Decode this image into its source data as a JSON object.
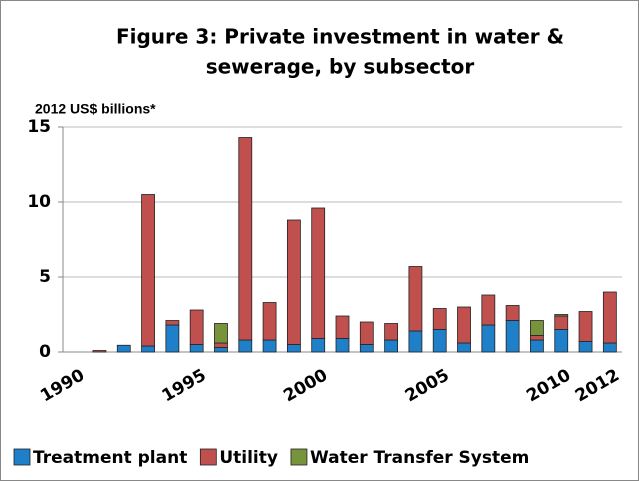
{
  "chart_data": {
    "type": "stacked_bar",
    "title": [
      "Figure 3: Private investment in water &",
      "sewerage, by subsector"
    ],
    "y_label": "2012 US$  billions*",
    "categories": [
      "1990",
      null,
      null,
      null,
      null,
      "1995",
      null,
      null,
      null,
      null,
      "2000",
      null,
      null,
      null,
      null,
      "2005",
      null,
      null,
      null,
      null,
      "2010",
      null,
      "2012"
    ],
    "series": [
      {
        "name": "Treatment plant",
        "color": "#1f7fc8",
        "values": [
          0,
          0,
          0.45,
          0.4,
          1.8,
          0.5,
          0.3,
          0.8,
          0.8,
          0.5,
          0.9,
          0.9,
          0.5,
          0.8,
          1.4,
          1.5,
          0.6,
          1.8,
          2.1,
          0.8,
          1.5,
          0.7,
          0.6
        ]
      },
      {
        "name": "Utility",
        "color": "#c0504d",
        "values": [
          0,
          0.1,
          0,
          10.1,
          0.3,
          2.3,
          0.3,
          13.5,
          2.5,
          8.3,
          8.7,
          1.5,
          1.5,
          1.1,
          4.3,
          1.4,
          2.4,
          2.0,
          1.0,
          0.3,
          0.9,
          2.0,
          3.4
        ]
      },
      {
        "name": "Water Transfer System",
        "color": "#77933c",
        "values": [
          0,
          0,
          0,
          0,
          0,
          0,
          1.3,
          0,
          0,
          0,
          0,
          0,
          0,
          0,
          0,
          0,
          0,
          0,
          0,
          1.0,
          0.1,
          0,
          0
        ]
      }
    ],
    "ylim": [
      0,
      15
    ],
    "yticks": [
      0,
      5,
      10,
      15
    ],
    "grid": true,
    "legend": "bottom"
  }
}
